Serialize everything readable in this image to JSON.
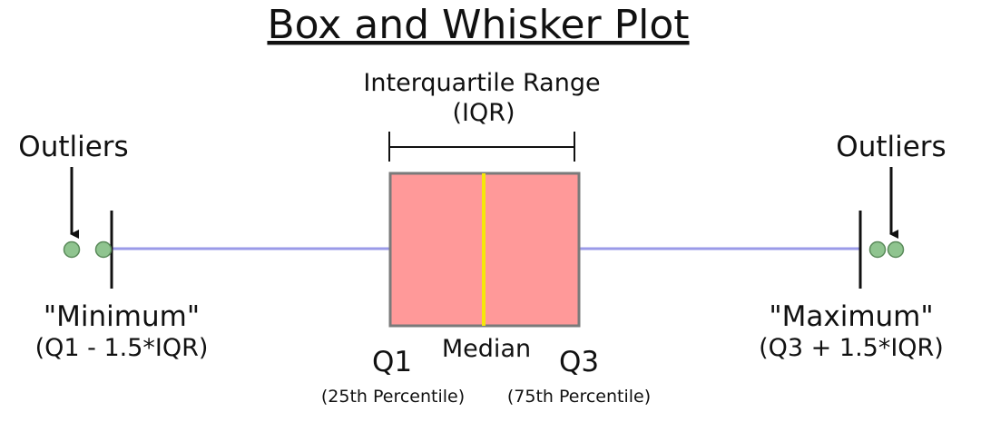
{
  "title": "Box and Whisker Plot",
  "iqr_label": {
    "line1": "Interquartile Range",
    "line2": "(IQR)"
  },
  "outliers_left_label": "Outliers",
  "outliers_right_label": "Outliers",
  "minimum": {
    "label": "\"Minimum\"",
    "formula": "(Q1 - 1.5*IQR)"
  },
  "maximum": {
    "label": "\"Maximum\"",
    "formula": "(Q3 + 1.5*IQR)"
  },
  "q1": {
    "label": "Q1",
    "note": "(25th Percentile)"
  },
  "median": {
    "label": "Median"
  },
  "q3": {
    "label": "Q3",
    "note": "(75th Percentile)"
  },
  "colors": {
    "box_fill": "#ff9999",
    "box_stroke": "#7a7a7a",
    "median_line": "#f5e60a",
    "whisker_line": "#9a9ae8",
    "outlier_fill": "#8fc48f",
    "outlier_stroke": "#5a8a5a",
    "ink": "#111111"
  }
}
